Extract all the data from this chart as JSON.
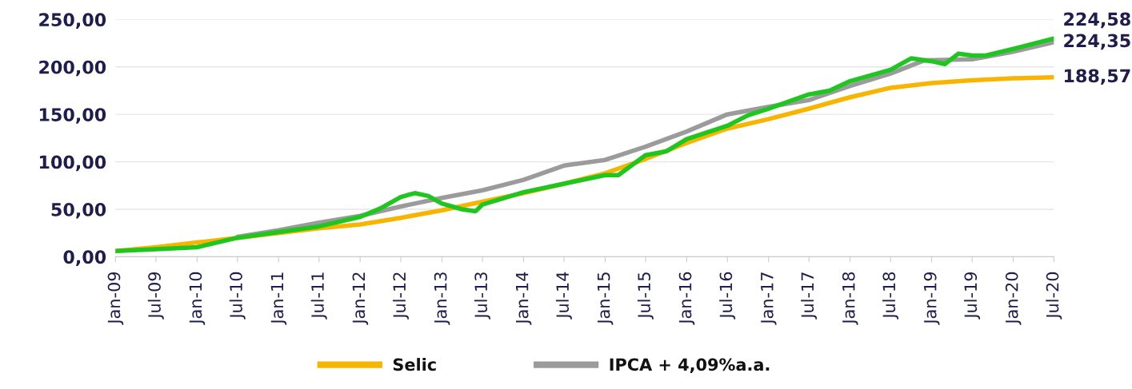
{
  "chart_data": {
    "type": "line",
    "ylim": [
      0,
      250
    ],
    "yticks": [
      {
        "value": 0,
        "label": "0,00"
      },
      {
        "value": 50,
        "label": "50,00"
      },
      {
        "value": 100,
        "label": "100,00"
      },
      {
        "value": 150,
        "label": "150,00"
      },
      {
        "value": 200,
        "label": "200,00"
      },
      {
        "value": 250,
        "label": "250,00"
      }
    ],
    "xlim": [
      "2009-01",
      "2020-07"
    ],
    "xticks": [
      {
        "value": "2009-01",
        "label": "Jan-09"
      },
      {
        "value": "2009-07",
        "label": "Jul-09"
      },
      {
        "value": "2010-01",
        "label": "Jan-10"
      },
      {
        "value": "2010-07",
        "label": "Jul-10"
      },
      {
        "value": "2011-01",
        "label": "Jan-11"
      },
      {
        "value": "2011-07",
        "label": "Jul-11"
      },
      {
        "value": "2012-01",
        "label": "Jan-12"
      },
      {
        "value": "2012-07",
        "label": "Jul-12"
      },
      {
        "value": "2013-01",
        "label": "Jan-13"
      },
      {
        "value": "2013-07",
        "label": "Jul-13"
      },
      {
        "value": "2014-01",
        "label": "Jan-14"
      },
      {
        "value": "2014-07",
        "label": "Jul-14"
      },
      {
        "value": "2015-01",
        "label": "Jan-15"
      },
      {
        "value": "2015-07",
        "label": "Jul-15"
      },
      {
        "value": "2016-01",
        "label": "Jan-16"
      },
      {
        "value": "2016-07",
        "label": "Jul-16"
      },
      {
        "value": "2017-01",
        "label": "Jan-17"
      },
      {
        "value": "2017-07",
        "label": "Jul-17"
      },
      {
        "value": "2018-01",
        "label": "Jan-18"
      },
      {
        "value": "2018-07",
        "label": "Jul-18"
      },
      {
        "value": "2019-01",
        "label": "Jan-19"
      },
      {
        "value": "2019-07",
        "label": "Jul-19"
      },
      {
        "value": "2020-01",
        "label": "Jan-20"
      },
      {
        "value": "2020-07",
        "label": "Jul-20"
      }
    ],
    "grid": "y",
    "legend": "bottom left",
    "marker": "none",
    "line_style": "solid",
    "series": [
      {
        "color": "#1fc61f",
        "x": [
          "2009-01",
          "2009-07",
          "2010-01",
          "2010-07",
          "2011-01",
          "2011-07",
          "2012-01",
          "2012-04",
          "2012-07",
          "2012-09",
          "2012-11",
          "2013-01",
          "2013-04",
          "2013-06",
          "2013-07",
          "2014-01",
          "2014-07",
          "2015-01",
          "2015-03",
          "2015-07",
          "2015-10",
          "2016-01",
          "2016-07",
          "2016-10",
          "2017-01",
          "2017-07",
          "2017-10",
          "2018-01",
          "2018-07",
          "2018-10",
          "2019-01",
          "2019-03",
          "2019-05",
          "2019-07",
          "2019-09",
          "2020-01",
          "2020-07"
        ],
        "values": [
          6,
          8,
          10,
          20,
          26,
          32,
          42,
          51,
          63,
          67,
          64,
          56,
          50,
          48,
          55,
          68,
          77,
          86,
          86,
          107,
          111,
          124,
          138,
          149,
          156,
          171,
          175,
          185,
          197,
          209,
          206,
          203,
          214,
          212,
          212,
          219,
          230
        ]
      },
      {
        "name": "Selic",
        "color": "#f7b500",
        "x": [
          "2009-01",
          "2009-07",
          "2010-01",
          "2010-07",
          "2011-01",
          "2011-07",
          "2012-01",
          "2012-07",
          "2013-01",
          "2013-07",
          "2014-01",
          "2014-07",
          "2015-01",
          "2015-07",
          "2016-01",
          "2016-07",
          "2017-01",
          "2017-07",
          "2018-01",
          "2018-07",
          "2019-01",
          "2019-07",
          "2020-01",
          "2020-07"
        ],
        "values": [
          6,
          10,
          15,
          20,
          25,
          30,
          34,
          41,
          49,
          58,
          67,
          77,
          88,
          103,
          120,
          135,
          145,
          156,
          168,
          178,
          183,
          186,
          188,
          189
        ]
      },
      {
        "name": "IPCA + 4,09%a.a.",
        "color": "#9b9b9b",
        "x": [
          "2010-07",
          "2011-01",
          "2011-07",
          "2012-01",
          "2012-07",
          "2013-01",
          "2013-07",
          "2014-01",
          "2014-07",
          "2015-01",
          "2015-07",
          "2016-01",
          "2016-07",
          "2017-01",
          "2017-07",
          "2018-01",
          "2018-07",
          "2018-12",
          "2019-07",
          "2020-01",
          "2020-07"
        ],
        "values": [
          21,
          28,
          36,
          43,
          53,
          62,
          70,
          81,
          96,
          102,
          116,
          132,
          150,
          158,
          165,
          180,
          193,
          207,
          208,
          216,
          226
        ]
      }
    ],
    "annotations": [
      {
        "text": "224,58",
        "x": "2020-07",
        "y": 230
      },
      {
        "text": "224,35",
        "x": "2020-07",
        "y": 226
      },
      {
        "text": "188,57",
        "x": "2020-07",
        "y": 189
      }
    ]
  }
}
